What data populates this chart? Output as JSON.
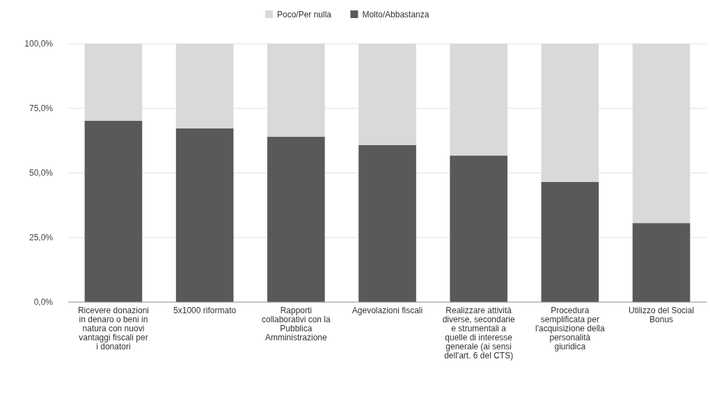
{
  "chart_data": {
    "type": "bar",
    "stacked": true,
    "categories": [
      "Ricevere donazioni in denaro o beni in natura con nuovi vantaggi fiscali per i donatori",
      "5x1000 riformato",
      "Rapporti collaborativi con la Pubblica Amministrazione",
      "Agevolazioni fiscali",
      "Realizzare attività diverse, secondarie e strumentali a quelle di interesse generale (ai sensi dell'art. 6 del CTS)",
      "Procedura semplificata per l'acquisizione della personalità giuridica",
      "Utilizzo del Social Bonus"
    ],
    "series": [
      {
        "name": "Molto/Abbastanza",
        "color": "#595959",
        "values": [
          70.2,
          67.3,
          64.0,
          60.8,
          56.7,
          46.5,
          30.6
        ]
      },
      {
        "name": "Poco/Per nulla",
        "color": "#d9d9d9",
        "values": [
          29.8,
          32.7,
          36.0,
          39.2,
          43.3,
          53.5,
          69.4
        ]
      }
    ],
    "ylim": [
      0,
      100
    ],
    "yticks": [
      {
        "value": 0,
        "label": "0,0%"
      },
      {
        "value": 25,
        "label": "25,0%"
      },
      {
        "value": 50,
        "label": "50,0%"
      },
      {
        "value": 75,
        "label": "75,0%"
      },
      {
        "value": 100,
        "label": "100,0%"
      }
    ],
    "grid": "y",
    "legend": "top"
  }
}
